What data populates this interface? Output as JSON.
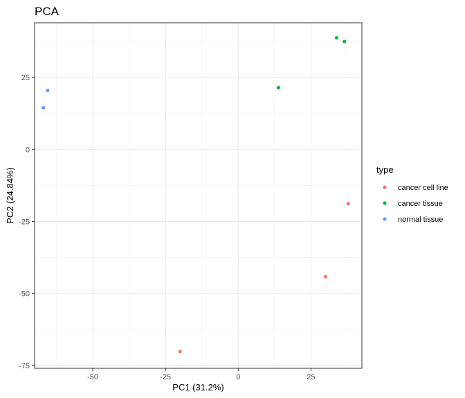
{
  "chart_data": {
    "type": "scatter",
    "title": "PCA",
    "xlabel": "PC1 (31.2%)",
    "ylabel": "PC2 (24.84%)",
    "xlim": [
      -70,
      42.5
    ],
    "ylim": [
      -76,
      44
    ],
    "xticks": [
      -50,
      -25,
      0,
      25
    ],
    "xtick_labels": [
      "-50",
      "-25",
      "0",
      "25"
    ],
    "yticks": [
      -75,
      -50,
      -25,
      0,
      25
    ],
    "ytick_labels": [
      "-75",
      "-50",
      "-25",
      "0",
      "25"
    ],
    "grid": true,
    "legend": {
      "title": "type",
      "placement": "right"
    },
    "series": [
      {
        "name": "cancer cell line",
        "color": "#F8766D",
        "points": [
          [
            37.8,
            -18.8
          ],
          [
            30.0,
            -44.2
          ],
          [
            -20.0,
            -70.2
          ]
        ]
      },
      {
        "name": "cancer tissue",
        "color": "#00BA38",
        "points": [
          [
            33.8,
            38.8
          ],
          [
            36.5,
            37.5
          ],
          [
            13.8,
            21.5
          ]
        ]
      },
      {
        "name": "normal tissue",
        "color": "#619CFF",
        "points": [
          [
            -65.5,
            20.5
          ],
          [
            -67.0,
            14.5
          ]
        ]
      }
    ]
  }
}
